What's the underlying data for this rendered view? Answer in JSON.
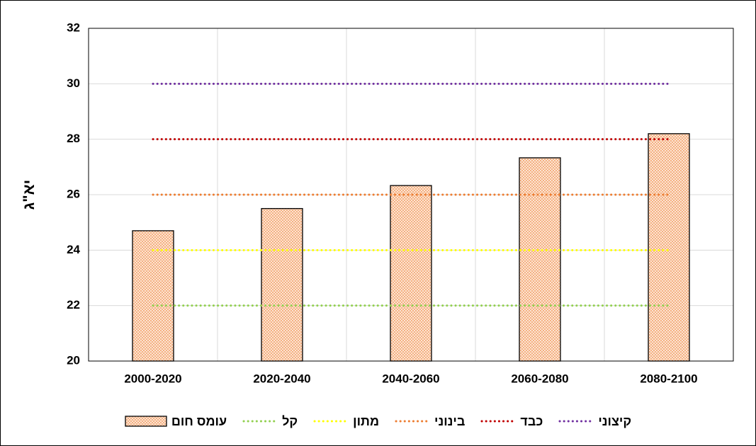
{
  "chart_data": {
    "type": "bar",
    "categories": [
      "2000-2020",
      "2020-2040",
      "2040-2060",
      "2060-2080",
      "2080-2100"
    ],
    "y_label": "יא\"ג",
    "ylim": [
      20,
      32
    ],
    "yticks": [
      20,
      22,
      24,
      26,
      28,
      30,
      32
    ],
    "grid": true,
    "series": [
      {
        "name": "עומס חום",
        "type": "bar",
        "color": "#f4b183",
        "values": [
          24.7,
          25.5,
          26.33,
          27.33,
          28.2
        ]
      },
      {
        "name": "קל",
        "type": "line",
        "color": "#92d050",
        "values": [
          22,
          22,
          22,
          22,
          22
        ]
      },
      {
        "name": "מתון",
        "type": "line",
        "color": "#ffff00",
        "values": [
          24,
          24,
          24,
          24,
          24
        ]
      },
      {
        "name": "בינוני",
        "type": "line",
        "color": "#ed7d31",
        "values": [
          26,
          26,
          26,
          26,
          26
        ]
      },
      {
        "name": "כבד",
        "type": "line",
        "color": "#c00000",
        "values": [
          28,
          28,
          28,
          28,
          28
        ]
      },
      {
        "name": "קיצוני",
        "type": "line",
        "color": "#7030a0",
        "values": [
          30,
          30,
          30,
          30,
          30
        ]
      }
    ]
  }
}
